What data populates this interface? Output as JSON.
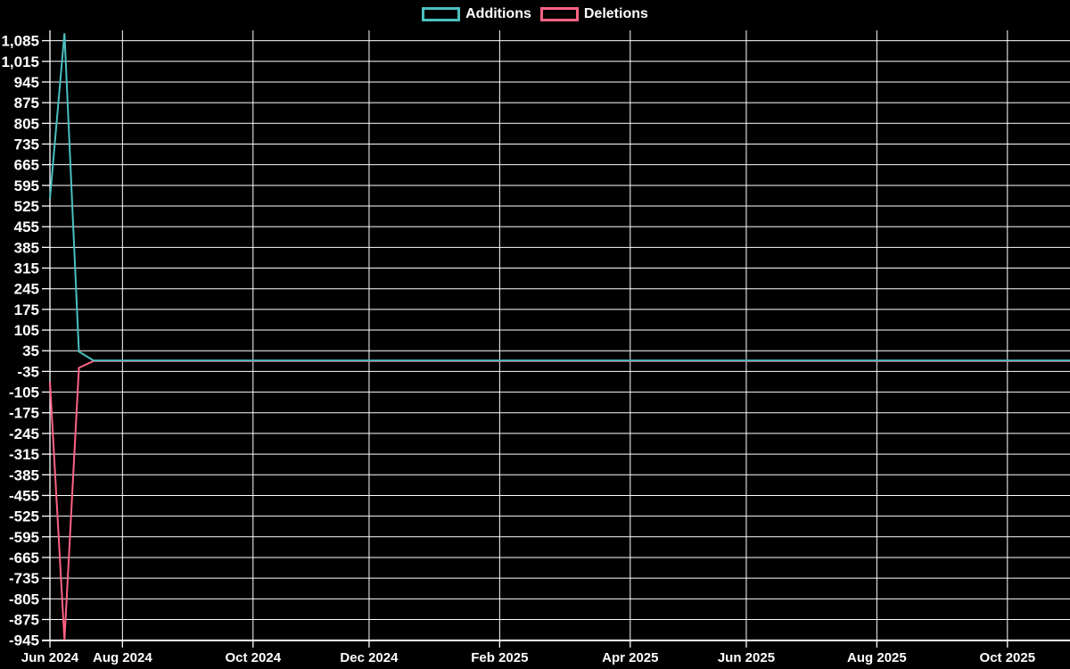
{
  "legend": {
    "items": [
      {
        "label": "Additions",
        "color": "#4bc0c0"
      },
      {
        "label": "Deletions",
        "color": "#ff6384"
      }
    ]
  },
  "chart_data": {
    "type": "line",
    "title": "",
    "description": "Code frequency style chart: weekly additions and deletions over time, huge spike in the first weeks (late Jun 2024), flat near zero afterwards",
    "legend_position": "top",
    "grid": true,
    "colors": {
      "background": "#000000",
      "grid": "#ffffff",
      "text": "#ffffff",
      "additions": "#4bc0c0",
      "deletions": "#ff6384"
    },
    "x_axis": {
      "unit": "week",
      "total_weeks": 72,
      "ticks": [
        {
          "label": "Jun 2024",
          "week": 0
        },
        {
          "label": "Aug 2024",
          "week": 5
        },
        {
          "label": "Oct 2024",
          "week": 14
        },
        {
          "label": "Dec 2024",
          "week": 22
        },
        {
          "label": "Feb 2025",
          "week": 31
        },
        {
          "label": "Apr 2025",
          "week": 40
        },
        {
          "label": "Jun 2025",
          "week": 48
        },
        {
          "label": "Aug 2025",
          "week": 57
        },
        {
          "label": "Oct 2025",
          "week": 66
        }
      ]
    },
    "y_axis": {
      "tick_step": 70,
      "tick_labels": [
        "1,085",
        "1,015",
        "945",
        "875",
        "805",
        "735",
        "665",
        "595",
        "525",
        "455",
        "385",
        "315",
        "245",
        "175",
        "105",
        "35",
        "-35",
        "-105",
        "-175",
        "-245",
        "-315",
        "-385",
        "-455",
        "-525",
        "-595",
        "-665",
        "-735",
        "-805",
        "-875",
        "-945"
      ],
      "ylim": [
        -946,
        1120
      ]
    },
    "series": [
      {
        "name": "Additions",
        "color": "#4bc0c0",
        "values": [
          550,
          1110,
          32,
          2,
          2,
          2,
          2,
          2,
          2,
          2,
          2,
          2,
          2,
          2,
          2,
          2,
          2,
          2,
          2,
          2,
          2,
          2,
          2,
          2,
          2,
          2,
          2,
          2,
          2,
          2,
          2,
          2,
          2,
          2,
          2,
          2,
          2,
          2,
          2,
          2,
          2,
          2,
          2,
          2,
          2,
          2,
          2,
          2,
          2,
          2,
          2,
          2,
          2,
          2,
          2,
          2,
          2,
          2,
          2,
          2,
          2,
          2,
          2,
          2,
          2,
          2,
          2,
          2,
          2,
          2,
          2,
          2
        ]
      },
      {
        "name": "Deletions",
        "color": "#ff6384",
        "values": [
          -70,
          -945,
          -23,
          0,
          0,
          0,
          0,
          0,
          0,
          0,
          0,
          0,
          0,
          0,
          0,
          0,
          0,
          0,
          0,
          0,
          0,
          0,
          0,
          0,
          0,
          0,
          0,
          0,
          0,
          0,
          0,
          0,
          0,
          0,
          0,
          0,
          0,
          0,
          0,
          0,
          0,
          0,
          0,
          0,
          0,
          0,
          0,
          0,
          0,
          0,
          0,
          0,
          0,
          0,
          0,
          0,
          0,
          0,
          0,
          0,
          0,
          0,
          0,
          0,
          0,
          0,
          0,
          0,
          0,
          0,
          0,
          0
        ]
      }
    ]
  }
}
